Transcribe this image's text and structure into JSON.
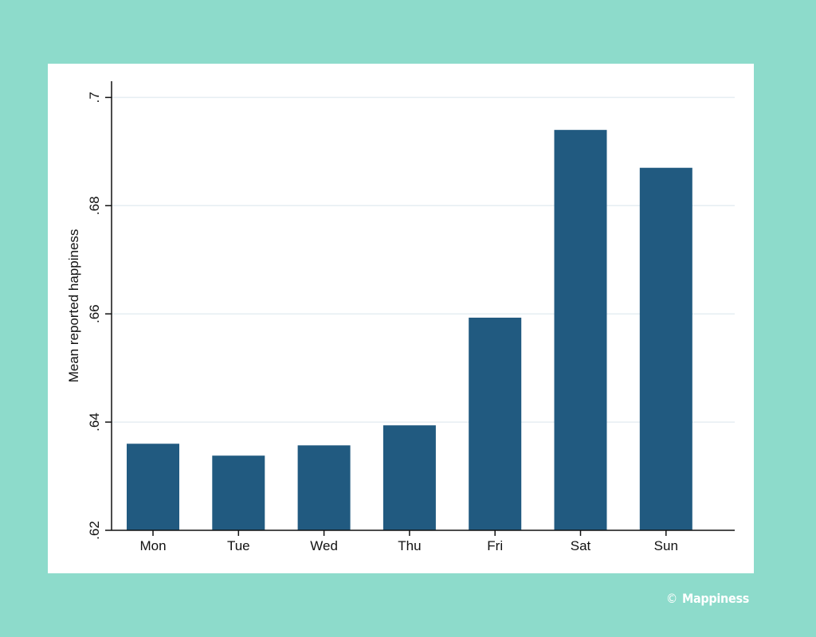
{
  "chart_data": {
    "type": "bar",
    "categories": [
      "Mon",
      "Tue",
      "Wed",
      "Thu",
      "Fri",
      "Sat",
      "Sun"
    ],
    "values": [
      0.636,
      0.6338,
      0.6357,
      0.6394,
      0.6593,
      0.694,
      0.687
    ],
    "ylabel": "Mean reported happiness",
    "xlabel": "",
    "ylim": [
      0.62,
      0.703
    ],
    "yticks": [
      0.62,
      0.64,
      0.66,
      0.68,
      0.7
    ],
    "ytick_labels": [
      ".62",
      ".64",
      ".66",
      ".68",
      ".7"
    ],
    "grid": true,
    "bar_color": "#215a80"
  },
  "credit": {
    "symbol": "©",
    "text": "Mappiness"
  }
}
